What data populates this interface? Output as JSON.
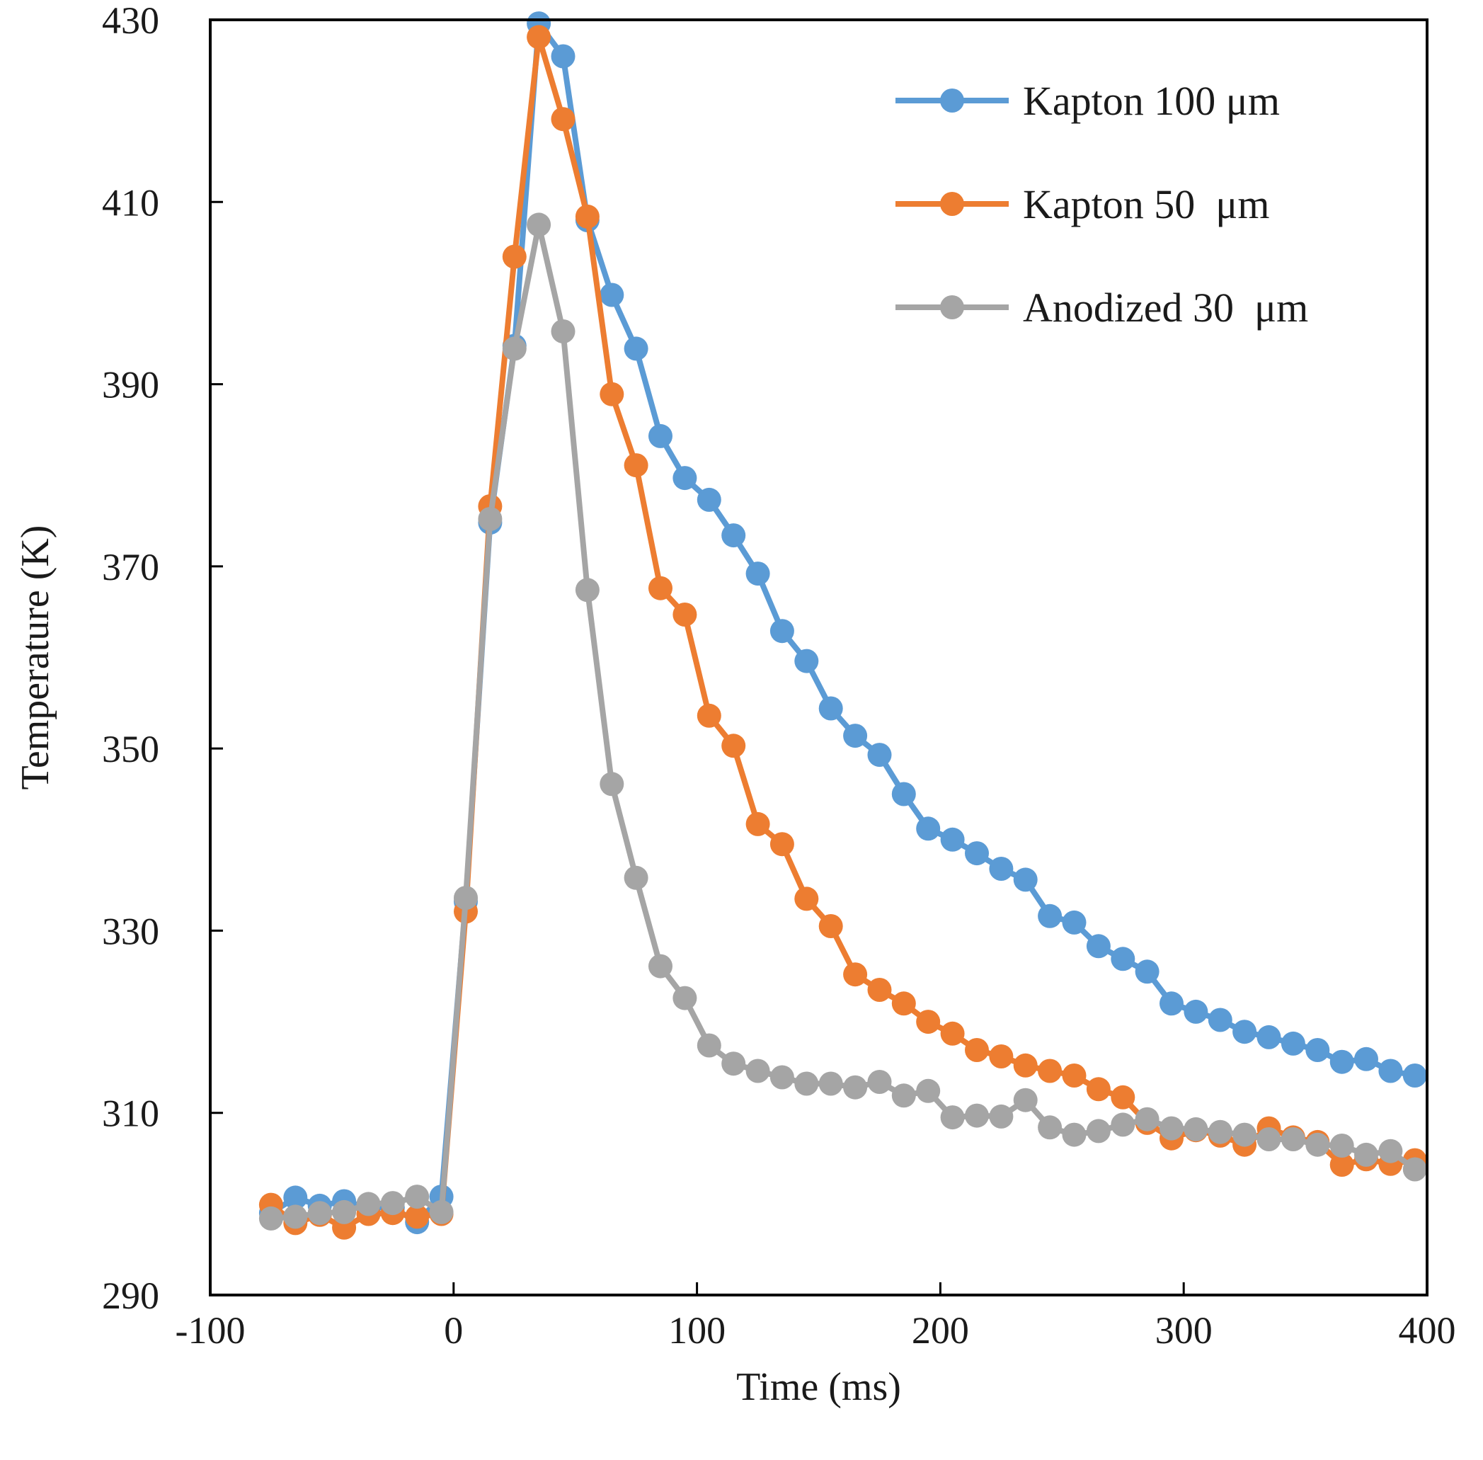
{
  "chart_data": {
    "type": "line",
    "xlabel": "Time (ms)",
    "ylabel": "Temperature (K)",
    "xlim": [
      -100,
      400
    ],
    "ylim": [
      290,
      430
    ],
    "xticks": [
      -100,
      0,
      100,
      200,
      300,
      400
    ],
    "yticks": [
      290,
      310,
      330,
      350,
      370,
      390,
      410,
      430
    ],
    "xtick_labels": [
      "-100",
      "0",
      "100",
      "200",
      "300",
      "400"
    ],
    "ytick_labels": [
      "290",
      "310",
      "330",
      "350",
      "370",
      "390",
      "410",
      "430"
    ],
    "grid": false,
    "legend_position": "top-right",
    "x": [
      -75,
      -65,
      -55,
      -45,
      -35,
      -25,
      -15,
      -5,
      5,
      15,
      25,
      35,
      45,
      55,
      65,
      75,
      85,
      95,
      105,
      115,
      125,
      135,
      145,
      155,
      165,
      175,
      185,
      195,
      205,
      215,
      225,
      235,
      245,
      255,
      265,
      275,
      285,
      295,
      305,
      315,
      325,
      335,
      345,
      355,
      365,
      375,
      385,
      395
    ],
    "series": [
      {
        "name": "Kapton 100 μm",
        "color": "#5b9bd5",
        "values": [
          299.0,
          300.7,
          299.8,
          300.3,
          299.6,
          299.6,
          298.0,
          300.8,
          333.2,
          374.8,
          394.2,
          429.6,
          426.0,
          408.0,
          399.8,
          393.9,
          384.3,
          379.7,
          377.3,
          373.4,
          369.2,
          362.9,
          359.6,
          354.4,
          351.4,
          349.3,
          345.0,
          341.2,
          340.0,
          338.5,
          336.8,
          335.6,
          331.6,
          330.9,
          328.3,
          326.9,
          325.5,
          322.0,
          321.1,
          320.2,
          318.9,
          318.3,
          317.6,
          316.9,
          315.6,
          315.9,
          314.6,
          314.1
        ]
      },
      {
        "name": "Kapton 50  μm",
        "color": "#ed7d31",
        "values": [
          299.9,
          297.9,
          298.8,
          297.4,
          298.9,
          299.0,
          298.6,
          298.9,
          332.1,
          376.6,
          404.0,
          428.1,
          419.1,
          408.4,
          388.9,
          381.1,
          367.6,
          364.7,
          353.6,
          350.3,
          341.7,
          339.5,
          333.5,
          330.5,
          325.2,
          323.5,
          322.0,
          320.0,
          318.7,
          316.9,
          316.2,
          315.2,
          314.6,
          314.1,
          312.6,
          311.7,
          308.9,
          307.2,
          308.1,
          307.5,
          306.5,
          308.3,
          307.3,
          306.8,
          304.3,
          304.9,
          304.4,
          304.8
        ]
      },
      {
        "name": "Anodized 30  μm",
        "color": "#a5a5a5",
        "values": [
          298.4,
          298.6,
          299.0,
          299.1,
          300.0,
          300.1,
          300.8,
          299.1,
          333.6,
          375.2,
          393.9,
          407.5,
          395.8,
          367.4,
          346.1,
          335.8,
          326.1,
          322.6,
          317.4,
          315.4,
          314.6,
          313.9,
          313.2,
          313.2,
          312.8,
          313.4,
          311.9,
          312.4,
          309.5,
          309.7,
          309.6,
          311.4,
          308.4,
          307.6,
          308.0,
          308.7,
          309.3,
          308.3,
          308.2,
          307.9,
          307.6,
          307.1,
          307.1,
          306.5,
          306.4,
          305.4,
          305.8,
          303.8
        ]
      }
    ]
  }
}
